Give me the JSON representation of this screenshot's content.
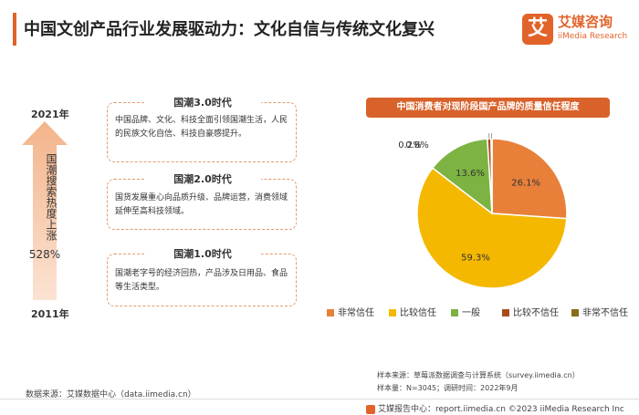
{
  "header": {
    "title": "中国文创产品行业发展驱动力：文化自信与传统文化复兴",
    "logo_name": "艾媒咨询",
    "logo_sub": "iiMedia Research",
    "logo_mark": "艾"
  },
  "timeline": {
    "year_top": "2021年",
    "year_bottom": "2011年",
    "arrow_text": "国潮搜索热度上涨",
    "arrow_value": "528%",
    "eras": [
      {
        "title": "国潮3.0时代",
        "text": "中国品牌、文化、科技全面引领国潮生活，人民的民族文化自信、科技自豪感提升。"
      },
      {
        "title": "国潮2.0时代",
        "text": "国货发展重心向品质升级、品牌运营，消费领域延伸至高科技领域。"
      },
      {
        "title": "国潮1.0时代",
        "text": "国潮老字号的经济回热，产品涉及日用品、食品等生活类型。"
      }
    ]
  },
  "chart_data": {
    "type": "pie",
    "title": "中国消费者对现阶段国产品牌的质量信任程度",
    "unit": "%",
    "slices": [
      {
        "name": "非常信任",
        "value": 26.1,
        "label": "26.1%",
        "color": "#e8803a"
      },
      {
        "name": "比较信任",
        "value": 59.3,
        "label": "59.3%",
        "color": "#f5b800"
      },
      {
        "name": "一般",
        "value": 13.6,
        "label": "13.6%",
        "color": "#7cb342"
      },
      {
        "name": "比较不信任",
        "value": 0.8,
        "label": "0.8%",
        "color": "#a94c1d"
      },
      {
        "name": "非常不信任",
        "value": 0.2,
        "label": "0.2%",
        "color": "#8a6d1a"
      }
    ],
    "legend_position": "bottom"
  },
  "notes": {
    "sample_source": "样本来源：草莓派数据调查与计算系统（survey.iimedia.cn）",
    "sample_size": "样本量：N=3045；调研时间：2022年9月",
    "data_source": "数据来源：艾媒数据中心（data.iimedia.cn）",
    "footer": "艾媒报告中心：report.iimedia.cn  ©2023  iiMedia Research  Inc"
  }
}
